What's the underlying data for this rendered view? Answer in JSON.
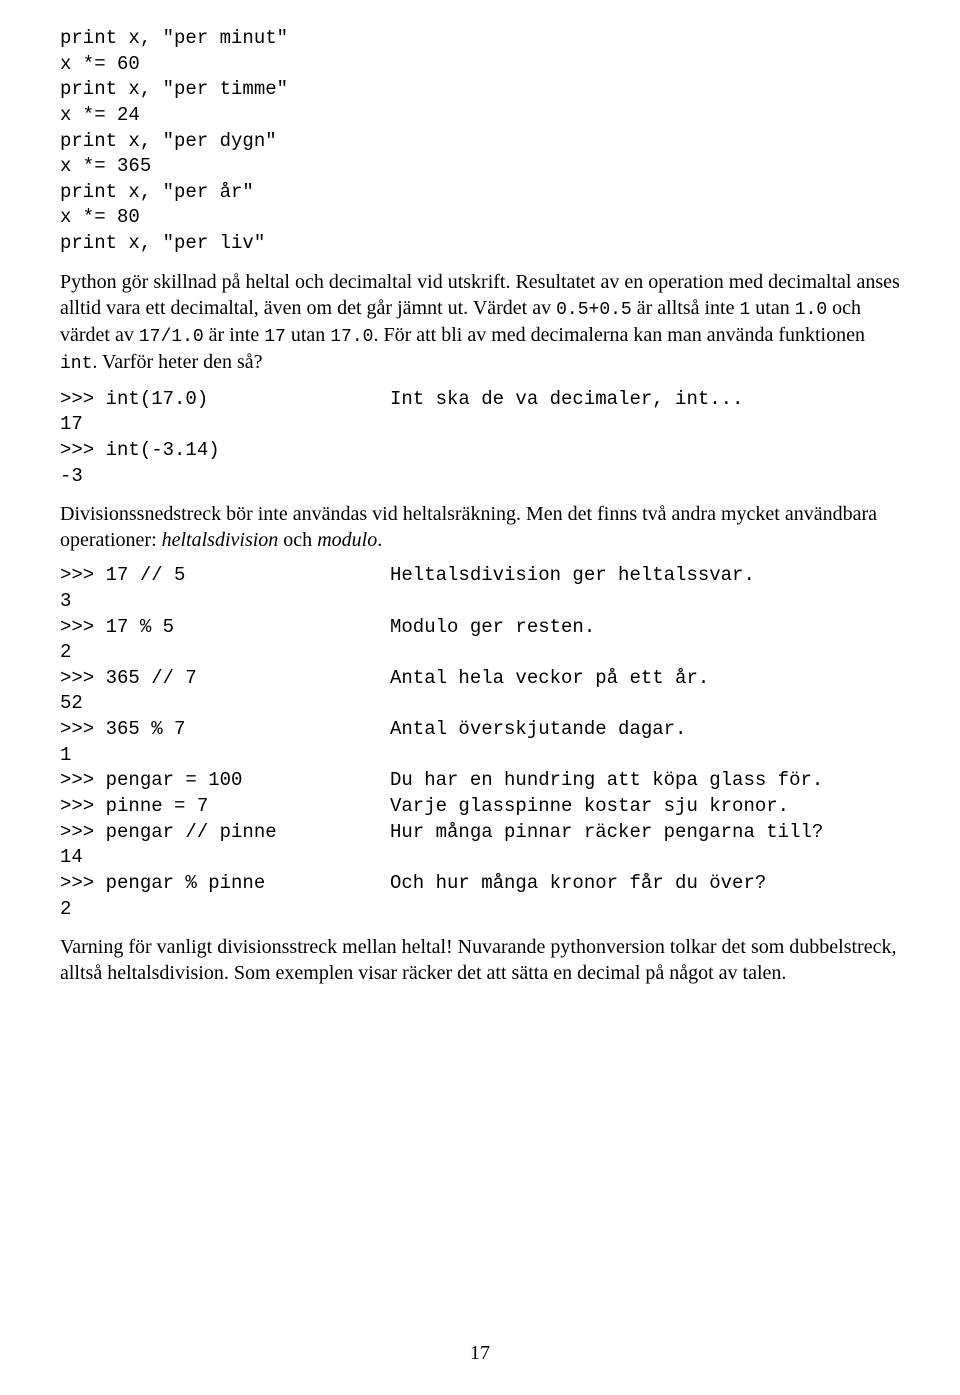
{
  "codeblock1": {
    "lines": [
      "print x, \"per minut\"",
      "x *= 60",
      "print x, \"per timme\"",
      "x *= 24",
      "print x, \"per dygn\"",
      "x *= 365",
      "print x, \"per år\"",
      "x *= 80",
      "print x, \"per liv\""
    ]
  },
  "para1": {
    "text_before_mono": "Python gör skillnad på heltal och decimaltal vid utskrift. Resultatet av en operation med decimaltal anses alltid vara ett decimaltal, även om det går jämnt ut. Värdet av ",
    "mono1": "0.5+0.5",
    "mid1": " är alltså inte ",
    "mono2": "1",
    "mid2": " utan ",
    "mono3": "1.0",
    "mid3": " och värdet av ",
    "mono4": "17/1.0",
    "mid4": " är inte ",
    "mono5": "17",
    "mid5": " utan ",
    "mono6": "17.0",
    "mid6": ". För att bli av med decimalerna kan man använda funktionen ",
    "mono7": "int",
    "mid7": ". Varför heter den så?"
  },
  "codeblock2": {
    "rows": [
      {
        "left": ">>> int(17.0)",
        "right": "Int ska de va decimaler, int..."
      },
      {
        "left": "17",
        "right": ""
      },
      {
        "left": ">>> int(-3.14)",
        "right": ""
      },
      {
        "left": "-3",
        "right": ""
      }
    ]
  },
  "para2": {
    "text1": "Divisionssnedstreck bör inte användas vid heltalsräkning. Men det finns två andra mycket användbara operationer: ",
    "italic1": "heltalsdivision",
    "mid": " och ",
    "italic2": "modulo",
    "end": "."
  },
  "codeblock3": {
    "rows": [
      {
        "left": ">>> 17 // 5",
        "right": "Heltalsdivision ger heltalssvar."
      },
      {
        "left": "3",
        "right": ""
      },
      {
        "left": ">>> 17 % 5",
        "right": "Modulo ger resten."
      },
      {
        "left": "2",
        "right": ""
      },
      {
        "left": ">>> 365 // 7",
        "right": "Antal hela veckor på ett år."
      },
      {
        "left": "52",
        "right": ""
      },
      {
        "left": ">>> 365 % 7",
        "right": "Antal överskjutande dagar."
      },
      {
        "left": "1",
        "right": ""
      },
      {
        "left": ">>> pengar = 100",
        "right": "Du har en hundring att köpa glass för."
      },
      {
        "left": ">>> pinne = 7",
        "right": "Varje glasspinne kostar sju kronor."
      },
      {
        "left": ">>> pengar // pinne",
        "right": "Hur många pinnar räcker pengarna till?"
      },
      {
        "left": "14",
        "right": ""
      },
      {
        "left": ">>> pengar % pinne",
        "right": "Och hur många kronor får du över?"
      },
      {
        "left": "2",
        "right": ""
      }
    ]
  },
  "para3": "Varning för vanligt divisionsstreck mellan heltal! Nuvarande pythonversion tolkar det som dubbelstreck, alltså heltalsdivision. Som exemplen visar räcker det att sätta en decimal på något av talen.",
  "page_number": "17"
}
